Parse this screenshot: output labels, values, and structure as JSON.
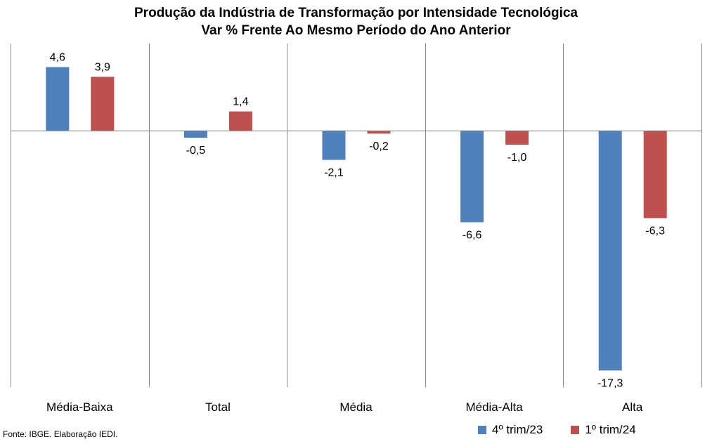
{
  "chart_data": {
    "type": "bar",
    "title": "Produção da Indústria de Transformação por Intensidade Tecnológica",
    "subtitle": "Var % Frente Ao Mesmo Período do Ano Anterior",
    "categories": [
      "Média-Baixa",
      "Total",
      "Média",
      "Média-Alta",
      "Alta"
    ],
    "series": [
      {
        "name": "4º trim/23",
        "color": "#4F81BD",
        "values": [
          4.6,
          -0.5,
          -2.1,
          -6.6,
          -17.3
        ],
        "labels": [
          "4,6",
          "-0,5",
          "-2,1",
          "-6,6",
          "-17,3"
        ]
      },
      {
        "name": "1º trim/24",
        "color": "#C0504D",
        "values": [
          3.9,
          1.4,
          -0.2,
          -1.0,
          -6.3
        ],
        "labels": [
          "3,9",
          "1,4",
          "-0,2",
          "-1,0",
          "-6,3"
        ]
      }
    ],
    "ylim": [
      -18.5,
      6.3
    ],
    "grid": false,
    "legend_position": "bottom-right"
  },
  "source": "Fonte: IBGE. Elaboração IEDI."
}
